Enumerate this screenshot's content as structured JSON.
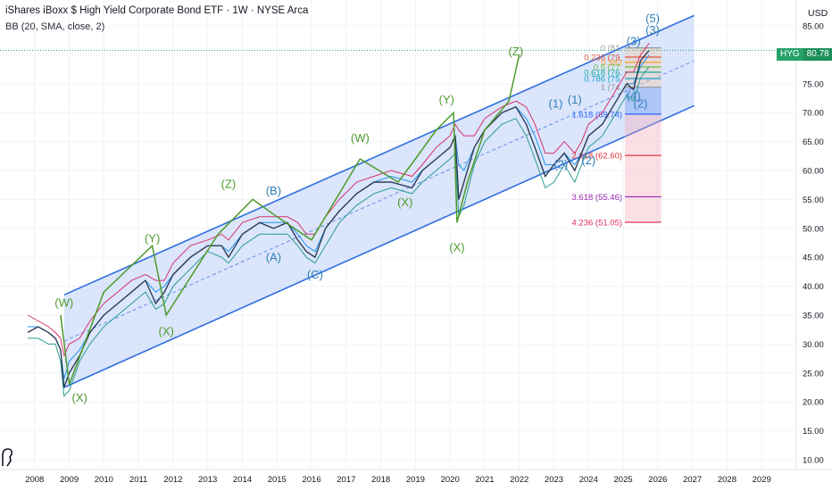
{
  "header": {
    "title": "iShares iBoxx $ High Yield Corporate Bond ETF · 1W · NYSE Arca",
    "indicator": "BB (20, SMA, close, 2)"
  },
  "currency": "USD",
  "price_tag": {
    "symbol": "HYG",
    "price": "80.78"
  },
  "colors": {
    "channel_fill": "#cfdcfa",
    "channel_line": "#2f6ee0",
    "price": "#2e3d57",
    "bb_upper": "#d6336c",
    "bb_mid": "#2196f3",
    "bb_lower": "#2a9d8f",
    "wave_green": "#4c9a2a",
    "wave_blue": "#2f7fb8",
    "axis_text": "#131722",
    "grid": "#f0f3fa"
  },
  "chart_data": {
    "type": "line",
    "title": "iShares iBoxx $ High Yield Corporate Bond ETF · 1W · NYSE Arca",
    "xlim": [
      2007.0,
      2030.0
    ],
    "ylim": [
      9.0,
      88.0
    ],
    "x_ticks": [
      "2008",
      "2009",
      "2010",
      "2011",
      "2012",
      "2013",
      "2014",
      "2015",
      "2016",
      "2017",
      "2018",
      "2019",
      "2020",
      "2021",
      "2022",
      "2023",
      "2024",
      "2025",
      "2026",
      "2027",
      "2028",
      "2029"
    ],
    "y_ticks": [
      "10.00",
      "15.00",
      "20.00",
      "25.00",
      "30.00",
      "35.00",
      "40.00",
      "45.00",
      "50.00",
      "55.00",
      "60.00",
      "65.00",
      "70.00",
      "75.00",
      "80.00",
      "85.00"
    ],
    "price_series": {
      "name": "HYG",
      "x": [
        2007.8,
        2008.1,
        2008.4,
        2008.6,
        2008.75,
        2008.85,
        2009.0,
        2009.3,
        2009.6,
        2010.0,
        2010.4,
        2010.8,
        2011.2,
        2011.5,
        2011.75,
        2012.0,
        2012.5,
        2013.0,
        2013.4,
        2013.6,
        2014.0,
        2014.5,
        2014.9,
        2015.3,
        2015.6,
        2015.85,
        2016.1,
        2016.4,
        2016.8,
        2017.3,
        2017.8,
        2018.3,
        2018.9,
        2019.2,
        2019.6,
        2020.0,
        2020.15,
        2020.25,
        2020.4,
        2020.7,
        2021.0,
        2021.5,
        2021.9,
        2022.2,
        2022.45,
        2022.75,
        2023.0,
        2023.3,
        2023.6,
        2023.8,
        2024.0,
        2024.4,
        2024.8,
        2025.1,
        2025.3,
        2025.5,
        2025.75
      ],
      "y": [
        32,
        33,
        32,
        31,
        29,
        22.5,
        25,
        28,
        32,
        35,
        37,
        39,
        41,
        37,
        39,
        42,
        45,
        47,
        47,
        45,
        49,
        51,
        50,
        51,
        48,
        46,
        45,
        50,
        53,
        56,
        58,
        58,
        57,
        60,
        62,
        64,
        66,
        55,
        58,
        64,
        67,
        70,
        71,
        68,
        64,
        59,
        61,
        63,
        60,
        63,
        66,
        68,
        72,
        75,
        74,
        79,
        80.78
      ]
    },
    "bollinger": {
      "name": "BB (20, SMA, close, 2)",
      "upper": [
        35,
        34,
        33,
        32,
        31,
        28,
        30,
        31,
        34,
        37,
        39,
        41,
        42,
        41,
        41,
        44,
        47,
        48,
        49,
        48,
        51,
        52,
        52,
        52,
        51,
        49,
        49,
        52,
        55,
        58,
        59,
        60,
        59,
        61,
        64,
        66,
        68,
        67,
        66,
        66,
        69,
        71,
        72,
        71,
        68,
        63,
        63,
        65,
        63,
        65,
        68,
        70,
        74,
        77,
        77,
        80,
        82
      ],
      "mid": [
        33,
        33,
        32,
        31,
        29,
        24,
        27,
        29,
        32,
        35,
        37,
        39,
        41,
        39,
        40,
        42,
        45,
        47,
        47,
        46,
        49,
        51,
        51,
        51,
        49,
        47,
        46,
        50,
        53,
        56,
        58,
        59,
        58,
        60,
        62,
        64,
        66,
        61,
        60,
        64,
        67,
        70,
        71,
        69,
        66,
        61,
        61,
        63,
        61,
        63,
        66,
        68,
        72,
        75,
        75,
        78,
        80
      ],
      "lower": [
        31,
        31,
        30,
        30,
        27,
        21,
        22,
        27,
        30,
        33,
        35,
        37,
        39,
        36,
        37,
        40,
        43,
        46,
        45,
        44,
        47,
        49,
        49,
        49,
        47,
        45,
        44,
        47,
        51,
        54,
        56,
        57,
        56,
        58,
        60,
        62,
        63,
        52,
        54,
        61,
        65,
        68,
        69,
        66,
        62,
        57,
        58,
        61,
        58,
        61,
        64,
        66,
        70,
        73,
        72,
        76,
        78
      ]
    },
    "regression_channel": {
      "x_start": 2008.85,
      "x_end": 2027.05,
      "upper_start": 38.5,
      "upper_end": 86.8,
      "mid_start": 30.5,
      "mid_end": 79.0,
      "lower_start": 22.5,
      "lower_end": 71.2
    },
    "wave_path_green": {
      "x": [
        2008.75,
        2009.0,
        2010.0,
        2011.4,
        2011.8,
        2013.3,
        2014.3,
        2015.0,
        2016.0,
        2017.4,
        2018.5,
        2019.0,
        2019.6,
        2020.1,
        2020.2,
        2020.5,
        2021.0,
        2021.7,
        2022.0
      ],
      "y": [
        35,
        23,
        39,
        47,
        35,
        49,
        55,
        52,
        48,
        62,
        58,
        62,
        67,
        70,
        51,
        58,
        67,
        72,
        80
      ]
    },
    "fibonacci": [
      {
        "ratio": "0",
        "label": "0 (81.",
        "value": 81.2,
        "color": "#9598a1"
      },
      {
        "ratio": "0.236",
        "label": "0.236 (79.",
        "value": 79.6,
        "color": "#e0563c"
      },
      {
        "ratio": "0.382",
        "label": "0.382",
        "value": 78.7,
        "color": "#f59c1a"
      },
      {
        "ratio": "0.5",
        "label": "0.5 (77.",
        "value": 77.9,
        "color": "#6cc04a"
      },
      {
        "ratio": "0.618",
        "label": "0.618 (76.",
        "value": 77.0,
        "color": "#18a89a"
      },
      {
        "ratio": "0.786",
        "label": "0.786 (75.",
        "value": 75.9,
        "color": "#1aa0c8"
      },
      {
        "ratio": "1",
        "label": "1 (74.",
        "value": 74.4,
        "color": "#9598a1"
      },
      {
        "ratio": "1.618",
        "label": "1.618 (69.74)",
        "value": 69.74,
        "color": "#2962ff"
      },
      {
        "ratio": "2.618",
        "label": "2.618 (62.60)",
        "value": 62.6,
        "color": "#e0323c"
      },
      {
        "ratio": "3.618",
        "label": "3.618 (55.46)",
        "value": 55.46,
        "color": "#9c27b0"
      },
      {
        "ratio": "4.236",
        "label": "4.236 (51.05)",
        "value": 51.05,
        "color": "#e0325a"
      }
    ],
    "wave_labels": [
      {
        "text": "(W)",
        "x": 2008.85,
        "y": 36.5,
        "color": "green"
      },
      {
        "text": "(X)",
        "x": 2009.3,
        "y": 20.0,
        "color": "green"
      },
      {
        "text": "(Y)",
        "x": 2011.4,
        "y": 47.6,
        "color": "green"
      },
      {
        "text": "(X)",
        "x": 2011.8,
        "y": 31.5,
        "color": "green"
      },
      {
        "text": "(Z)",
        "x": 2013.6,
        "y": 57.0,
        "color": "green"
      },
      {
        "text": "(B)",
        "x": 2014.9,
        "y": 55.8,
        "color": "blue"
      },
      {
        "text": "(A)",
        "x": 2014.9,
        "y": 44.3,
        "color": "blue"
      },
      {
        "text": "(C)",
        "x": 2016.1,
        "y": 41.3,
        "color": "blue"
      },
      {
        "text": "(W)",
        "x": 2017.4,
        "y": 64.9,
        "color": "green"
      },
      {
        "text": "(X)",
        "x": 2018.7,
        "y": 53.8,
        "color": "green"
      },
      {
        "text": "(Y)",
        "x": 2019.9,
        "y": 71.6,
        "color": "green"
      },
      {
        "text": "(X)",
        "x": 2020.2,
        "y": 46.0,
        "color": "green"
      },
      {
        "text": "(Z)",
        "x": 2021.9,
        "y": 79.9,
        "color": "green"
      },
      {
        "text": "(1)",
        "x": 2023.05,
        "y": 70.9,
        "color": "blue"
      },
      {
        "text": "(1)",
        "x": 2023.6,
        "y": 71.6,
        "color": "blue"
      },
      {
        "text": "(2)",
        "x": 2023.2,
        "y": 60.4,
        "color": "blue"
      },
      {
        "text": "(2)",
        "x": 2024.0,
        "y": 61.1,
        "color": "blue"
      },
      {
        "text": "(3)",
        "x": 2025.3,
        "y": 81.7,
        "color": "blue"
      },
      {
        "text": "(4)",
        "x": 2025.3,
        "y": 72.3,
        "color": "blue"
      },
      {
        "text": "(2)",
        "x": 2025.5,
        "y": 70.9,
        "color": "blue"
      },
      {
        "text": "(5)",
        "x": 2025.85,
        "y": 85.6,
        "color": "blue"
      },
      {
        "text": "(3)",
        "x": 2025.85,
        "y": 83.6,
        "color": "blue"
      }
    ]
  }
}
